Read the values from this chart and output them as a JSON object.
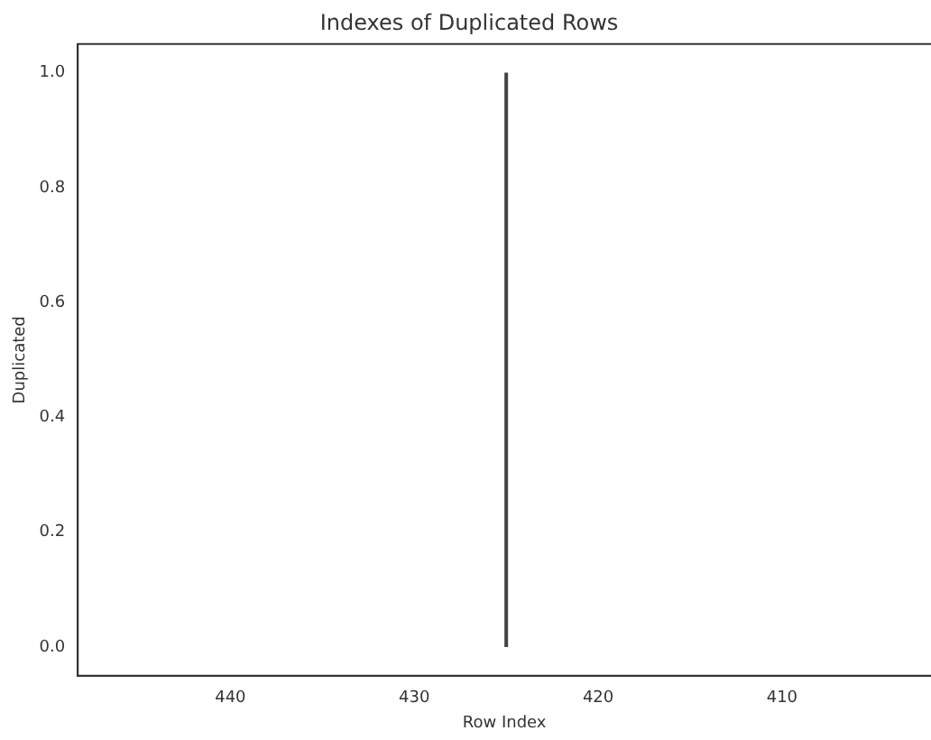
{
  "chart_data": {
    "type": "line",
    "title": "Indexes of Duplicated Rows",
    "xlabel": "Row Index",
    "ylabel": "Duplicated",
    "series": [
      {
        "color": "#444444",
        "x": [
          425,
          425
        ],
        "values": [
          0,
          1
        ]
      }
    ],
    "xlim": [
      448.3,
      401.9
    ],
    "xticks": [
      440,
      430,
      420,
      410
    ],
    "ylim": [
      -0.05,
      1.05
    ],
    "yticks": [
      {
        "value": 0,
        "label": "0.0"
      },
      {
        "value": 0.2,
        "label": "0.2"
      },
      {
        "value": 0.4,
        "label": "0.4"
      },
      {
        "value": 0.6,
        "label": "0.6"
      },
      {
        "value": 0.8,
        "label": "0.8"
      },
      {
        "value": 1,
        "label": "1.0"
      }
    ],
    "grid": false,
    "legend": false,
    "marker": "none",
    "line_style": "solid"
  }
}
